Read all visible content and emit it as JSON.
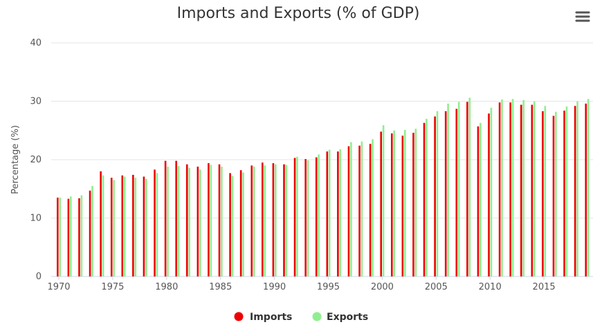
{
  "chart_data": {
    "type": "bar",
    "title": "Imports and Exports (% of GDP)",
    "xlabel": "",
    "ylabel": "Percentage (%)",
    "ylim": [
      0,
      40
    ],
    "yticks": [
      0,
      10,
      20,
      30,
      40
    ],
    "xtick_labels": [
      "1970",
      "1975",
      "1980",
      "1985",
      "1990",
      "1995",
      "2000",
      "2005",
      "2010",
      "2015"
    ],
    "grid": "horizontal",
    "legend_position": "bottom-center",
    "categories": [
      1970,
      1971,
      1972,
      1973,
      1974,
      1975,
      1976,
      1977,
      1978,
      1979,
      1980,
      1981,
      1982,
      1983,
      1984,
      1985,
      1986,
      1987,
      1988,
      1989,
      1990,
      1991,
      1992,
      1993,
      1994,
      1995,
      1996,
      1997,
      1998,
      1999,
      2000,
      2001,
      2002,
      2003,
      2004,
      2005,
      2006,
      2007,
      2008,
      2009,
      2010,
      2011,
      2012,
      2013,
      2014,
      2015,
      2016,
      2017,
      2018,
      2019
    ],
    "series": [
      {
        "name": "Imports",
        "color": "#ee0000",
        "values": [
          13.5,
          13.3,
          13.4,
          14.7,
          18.0,
          16.9,
          17.3,
          17.4,
          17.1,
          18.3,
          19.8,
          19.8,
          19.2,
          18.8,
          19.4,
          19.2,
          17.7,
          18.2,
          19.0,
          19.5,
          19.4,
          19.2,
          20.3,
          20.1,
          20.4,
          21.4,
          21.4,
          22.3,
          22.4,
          22.7,
          24.8,
          24.5,
          24.1,
          24.6,
          26.3,
          27.4,
          28.3,
          28.7,
          29.9,
          25.7,
          27.9,
          29.8,
          29.8,
          29.4,
          29.4,
          28.3,
          27.5,
          28.4,
          29.2,
          29.6
        ]
      },
      {
        "name": "Exports",
        "color": "#90ee90",
        "values": [
          13.5,
          13.7,
          13.9,
          15.5,
          17.3,
          16.5,
          17.1,
          16.9,
          16.7,
          17.7,
          18.8,
          18.9,
          18.6,
          18.3,
          19.1,
          18.8,
          17.2,
          17.8,
          18.8,
          19.0,
          19.2,
          19.1,
          20.5,
          19.9,
          20.9,
          21.7,
          21.8,
          23.0,
          23.1,
          23.5,
          25.9,
          25.0,
          25.1,
          25.3,
          27.0,
          28.3,
          29.6,
          29.9,
          30.6,
          26.3,
          28.9,
          30.3,
          30.4,
          30.2,
          30.0,
          29.2,
          28.2,
          29.1,
          30.0,
          30.4
        ]
      }
    ]
  },
  "icons": {
    "menu": "hamburger-menu-icon"
  }
}
